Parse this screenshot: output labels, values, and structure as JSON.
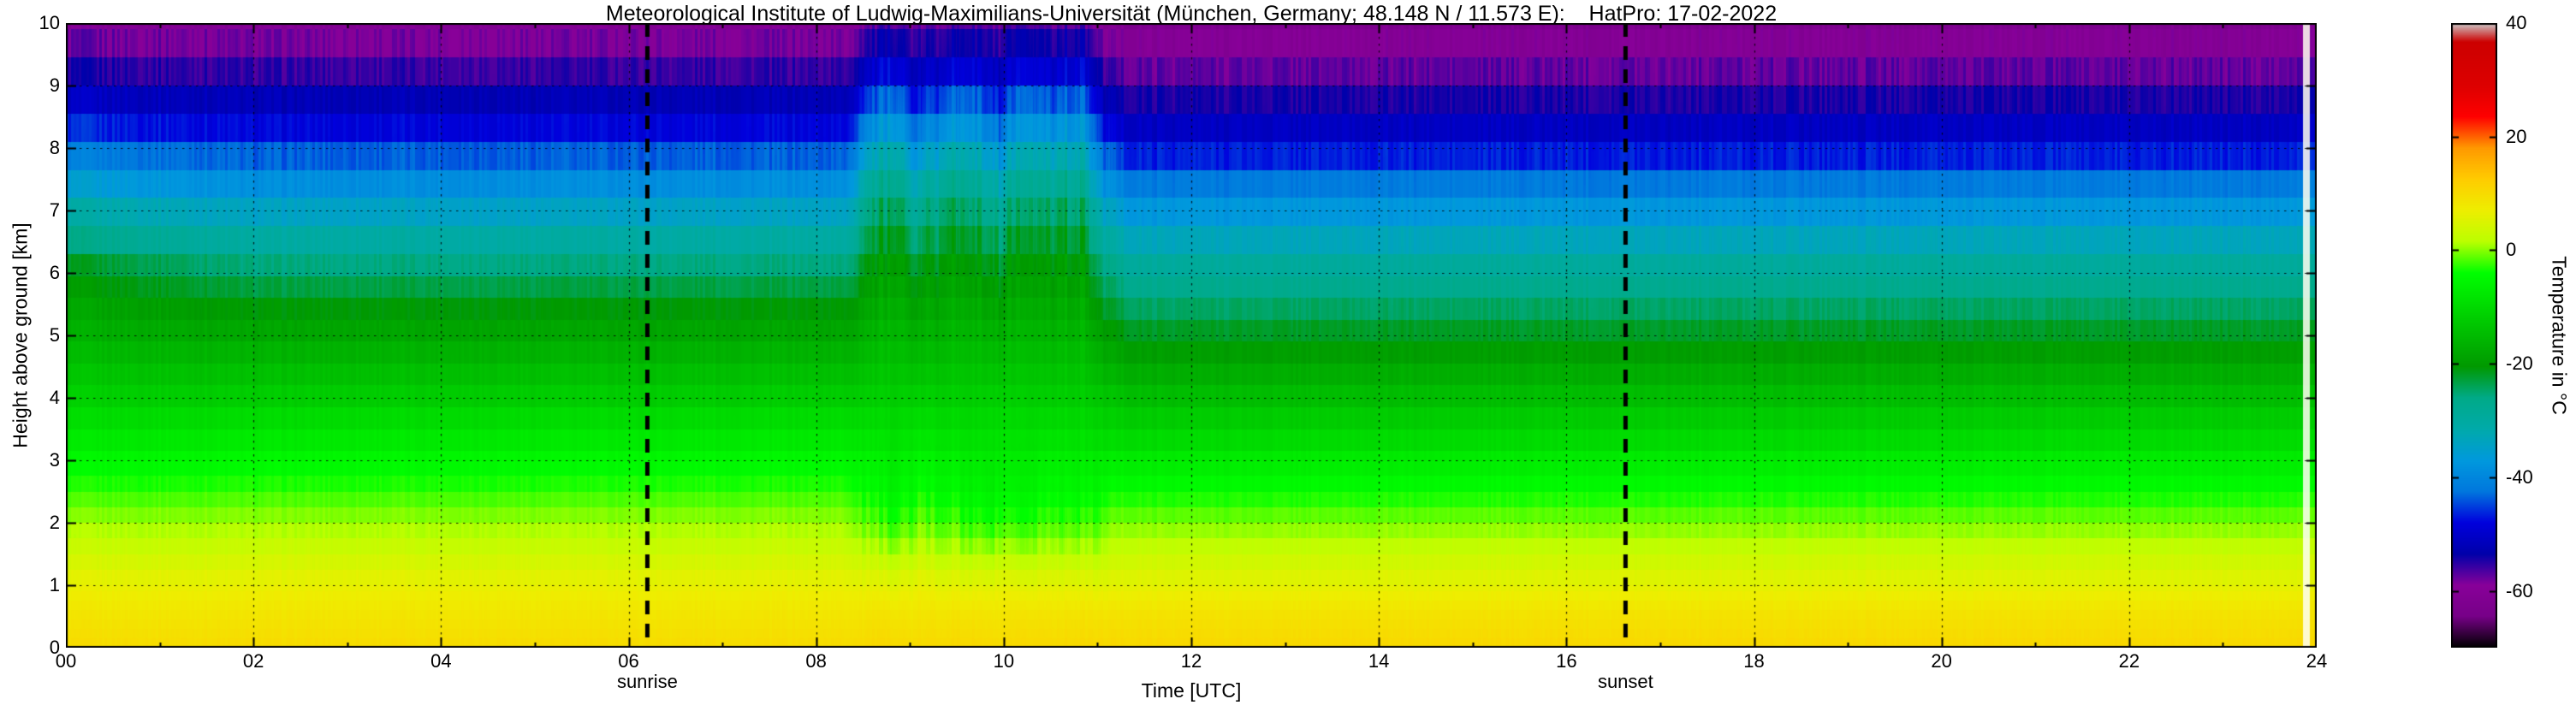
{
  "title": "Meteorological Institute of Ludwig-Maximilians-Universität (München, Germany; 48.148 N / 11.573 E):    HatPro: 17-02-2022",
  "axes": {
    "xlabel": "Time [UTC]",
    "ylabel": "Height above ground [km]",
    "x_range_hours": [
      0,
      24
    ],
    "y_range_km": [
      0,
      10
    ],
    "x_ticks": {
      "labels": [
        "00",
        "02",
        "04",
        "06",
        "08",
        "10",
        "12",
        "14",
        "16",
        "18",
        "20",
        "22",
        "24"
      ],
      "hours": [
        0,
        2,
        4,
        6,
        8,
        10,
        12,
        14,
        16,
        18,
        20,
        22,
        24
      ]
    },
    "y_ticks": {
      "labels": [
        "0",
        "1",
        "2",
        "3",
        "4",
        "5",
        "6",
        "7",
        "8",
        "9",
        "10"
      ],
      "values": [
        0,
        1,
        2,
        3,
        4,
        5,
        6,
        7,
        8,
        9,
        10
      ]
    },
    "grid": "dotted black at every labeled tick"
  },
  "annotations": [
    {
      "label": "sunrise",
      "hour": 6.2
    },
    {
      "label": "sunset",
      "hour": 16.63
    }
  ],
  "colorbar": {
    "label": "Temperature in  °C",
    "min": -70,
    "max": 40,
    "tick_labels": [
      "40",
      "20",
      "0",
      "-20",
      "-40",
      "-60"
    ],
    "tick_values": [
      40,
      20,
      0,
      -20,
      -40,
      -60
    ],
    "stops": [
      [
        0.0,
        "#000000"
      ],
      [
        0.05,
        "#770088"
      ],
      [
        0.1,
        "#880099"
      ],
      [
        0.15,
        "#0000aa"
      ],
      [
        0.2,
        "#0000dd"
      ],
      [
        0.25,
        "#0077dd"
      ],
      [
        0.3,
        "#0099dd"
      ],
      [
        0.35,
        "#00aaaa"
      ],
      [
        0.4,
        "#00aa88"
      ],
      [
        0.45,
        "#009900"
      ],
      [
        0.5,
        "#00bb00"
      ],
      [
        0.55,
        "#00dd00"
      ],
      [
        0.6,
        "#00ff00"
      ],
      [
        0.65,
        "#bbff00"
      ],
      [
        0.7,
        "#eeee00"
      ],
      [
        0.75,
        "#ffcc00"
      ],
      [
        0.8,
        "#ff9900"
      ],
      [
        0.85,
        "#ff0000"
      ],
      [
        0.9,
        "#dd0000"
      ],
      [
        0.97,
        "#cc0000"
      ],
      [
        1.0,
        "#cccccc"
      ]
    ]
  },
  "chart_data": {
    "type": "heatmap",
    "x_unit": "hours UTC",
    "y_unit": "km above ground",
    "value_unit": "degrees C",
    "heights_km": [
      0,
      0.5,
      1,
      1.5,
      2,
      2.5,
      3,
      3.5,
      4,
      4.5,
      5,
      5.5,
      6,
      6.5,
      7,
      7.5,
      8,
      8.5,
      9,
      9.5,
      10
    ],
    "keyframes": [
      {
        "hour": 0.0,
        "temps_c": [
          10,
          8.5,
          6.5,
          3.5,
          0.5,
          -2.5,
          -5.5,
          -8.5,
          -11.5,
          -14,
          -16.5,
          -18.5,
          -21,
          -26,
          -31,
          -36.5,
          -42.5,
          -48,
          -53,
          -56.5,
          -60
        ]
      },
      {
        "hour": 2.0,
        "temps_c": [
          10,
          8.5,
          6.5,
          3.5,
          0.5,
          -2.5,
          -5.5,
          -8.5,
          -12,
          -15,
          -18,
          -21,
          -25,
          -30,
          -34.5,
          -39.5,
          -45,
          -50,
          -54,
          -57.5,
          -60.5
        ]
      },
      {
        "hour": 8.3,
        "temps_c": [
          10,
          8.5,
          6.5,
          3.5,
          0.5,
          -2.5,
          -5.5,
          -8.5,
          -12,
          -15,
          -18,
          -21,
          -25,
          -30,
          -34.5,
          -39.5,
          -45,
          -50,
          -54,
          -57.5,
          -60.5
        ]
      },
      {
        "hour": 8.6,
        "temps_c": [
          10.5,
          9,
          6.5,
          3,
          -0.5,
          -3.5,
          -6,
          -9,
          -12,
          -14.5,
          -17,
          -19.5,
          -22,
          -25,
          -28,
          -32,
          -37,
          -43,
          -49,
          -54,
          -58
        ]
      },
      {
        "hour": 8.8,
        "temps_c": [
          10.5,
          9,
          6,
          2,
          -2,
          -5,
          -7,
          -9.5,
          -12,
          -14,
          -16,
          -18,
          -20.5,
          -23,
          -26,
          -29.5,
          -34,
          -40,
          -46.5,
          -52,
          -57
        ]
      },
      {
        "hour": 9.05,
        "temps_c": [
          10,
          8.5,
          6.5,
          3,
          -0.5,
          -3.5,
          -6,
          -9,
          -12,
          -15,
          -17.5,
          -20.5,
          -23.5,
          -27,
          -31,
          -35.5,
          -41,
          -46.5,
          -51.5,
          -55.5,
          -59
        ]
      },
      {
        "hour": 9.35,
        "temps_c": [
          10.5,
          9,
          6.5,
          3,
          -0.5,
          -3.5,
          -6,
          -9,
          -12,
          -14.5,
          -17,
          -19.5,
          -22,
          -25,
          -28,
          -32,
          -37,
          -43,
          -49,
          -54,
          -58
        ]
      },
      {
        "hour": 9.65,
        "temps_c": [
          10.5,
          9,
          6,
          2,
          -2,
          -5,
          -7,
          -9.5,
          -12,
          -14,
          -16,
          -18,
          -20.5,
          -23,
          -26,
          -29.5,
          -34,
          -40,
          -46.5,
          -52,
          -57
        ]
      },
      {
        "hour": 9.95,
        "temps_c": [
          10,
          8.5,
          6,
          2,
          -2.5,
          -5.5,
          -7.5,
          -9.5,
          -12,
          -15,
          -17.5,
          -20.5,
          -23.5,
          -27,
          -31,
          -35.5,
          -41,
          -46.5,
          -51.5,
          -55.5,
          -59
        ]
      },
      {
        "hour": 10.25,
        "temps_c": [
          10.5,
          9,
          6,
          2,
          -2,
          -5,
          -7,
          -9.5,
          -12,
          -14,
          -16,
          -18,
          -20.5,
          -23,
          -26,
          -29.5,
          -34,
          -40,
          -46.5,
          -52,
          -57
        ]
      },
      {
        "hour": 10.55,
        "temps_c": [
          10.5,
          9,
          6.5,
          3,
          -0.5,
          -3.5,
          -6,
          -9,
          -12,
          -14.5,
          -17,
          -19.5,
          -22,
          -25,
          -28,
          -32,
          -37,
          -43,
          -49,
          -54,
          -58
        ]
      },
      {
        "hour": 10.8,
        "temps_c": [
          10.5,
          9,
          6,
          2,
          -2,
          -5,
          -7,
          -9.5,
          -12,
          -14,
          -16,
          -18,
          -20.5,
          -23,
          -26,
          -29.5,
          -34,
          -40,
          -46.5,
          -52,
          -57
        ]
      },
      {
        "hour": 11.1,
        "temps_c": [
          10.5,
          9,
          6,
          3,
          0,
          -3.5,
          -7,
          -10.5,
          -13.5,
          -17,
          -20,
          -23.5,
          -27,
          -31.5,
          -36,
          -41,
          -46.5,
          -51.5,
          -55.5,
          -58.5,
          -61.5
        ]
      },
      {
        "hour": 11.45,
        "temps_c": [
          10.5,
          9,
          6,
          3,
          -0.5,
          -4,
          -7.5,
          -11,
          -14.5,
          -18,
          -21.5,
          -25,
          -28.5,
          -33,
          -37.5,
          -42.5,
          -48,
          -52.5,
          -56,
          -59,
          -62
        ]
      },
      {
        "hour": 14.0,
        "temps_c": [
          10.5,
          9,
          6,
          3,
          -0.5,
          -4,
          -7.5,
          -11,
          -14.5,
          -18,
          -21.5,
          -25,
          -28.5,
          -33,
          -37.5,
          -42.5,
          -48,
          -52.5,
          -56,
          -59,
          -62
        ]
      },
      {
        "hour": 18.0,
        "temps_c": [
          10.5,
          9,
          6,
          3,
          -0.5,
          -4,
          -7.5,
          -11,
          -14.5,
          -18,
          -21.5,
          -25,
          -28.5,
          -33,
          -37.5,
          -42.5,
          -48,
          -52.5,
          -56,
          -59,
          -62
        ]
      },
      {
        "hour": 21.0,
        "temps_c": [
          10.5,
          9,
          6,
          3,
          -0.5,
          -4,
          -7.5,
          -11,
          -14.5,
          -18,
          -21.5,
          -25,
          -28.5,
          -33,
          -37.5,
          -42.5,
          -48,
          -52.5,
          -56,
          -59,
          -62
        ]
      },
      {
        "hour": 24.0,
        "temps_c": [
          10.5,
          9,
          6,
          3,
          -0.5,
          -4,
          -7.5,
          -11,
          -14.5,
          -18,
          -21.5,
          -25,
          -28.5,
          -33,
          -37.5,
          -42.5,
          -48,
          -52.5,
          -56,
          -59,
          -62
        ]
      }
    ],
    "disturbed_interval_hours": [
      8.45,
      11.15
    ],
    "data_gap_stripe_hours": [
      23.85,
      23.93
    ]
  }
}
